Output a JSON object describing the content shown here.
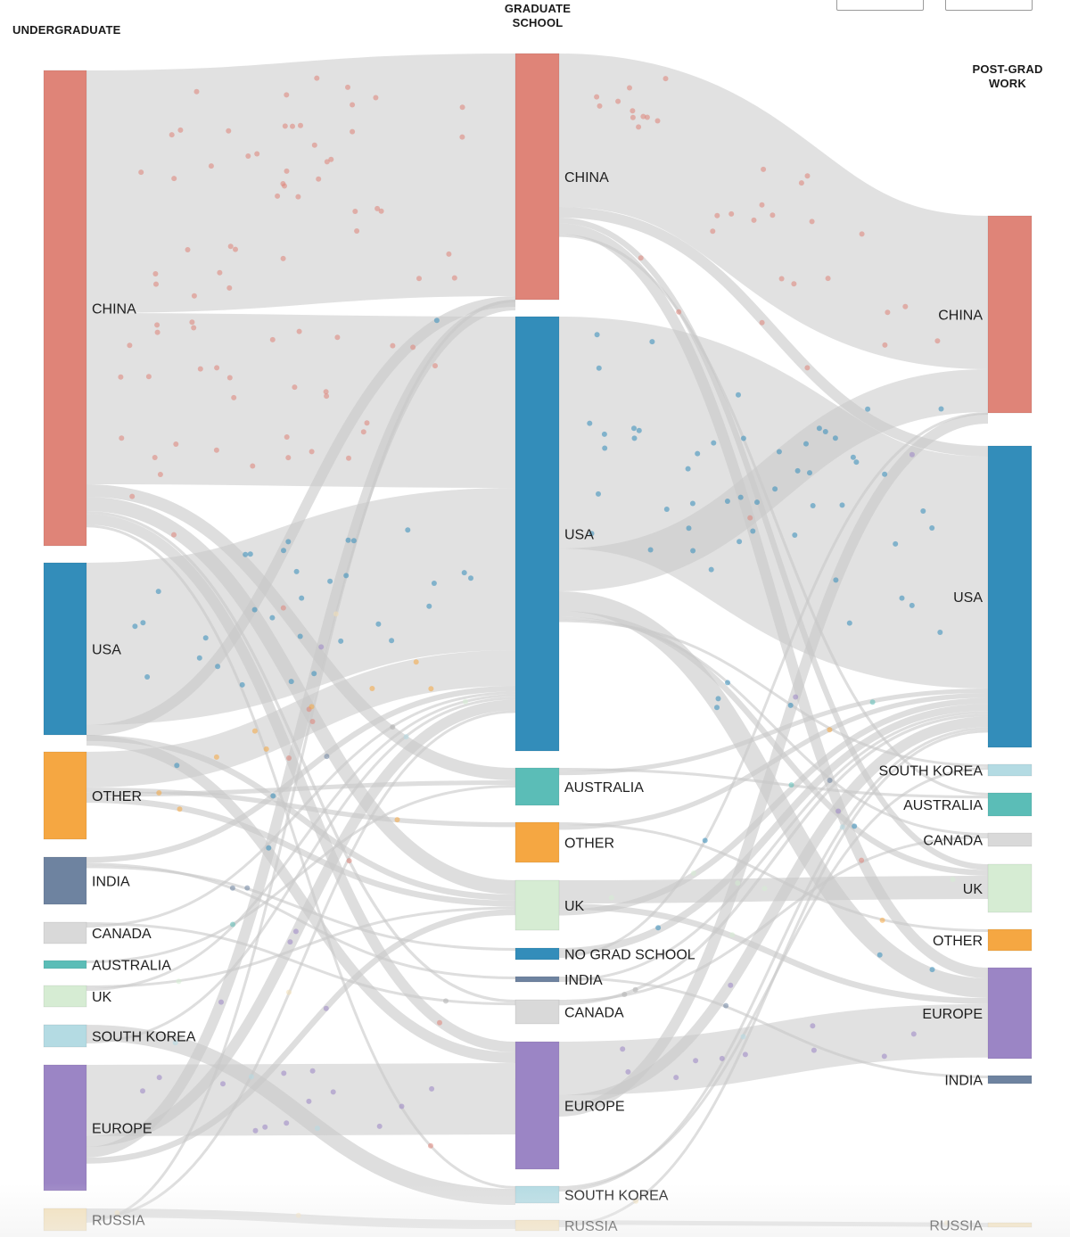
{
  "stages": {
    "undergraduate": "UNDERGRADUATE",
    "graduate_line1": "GRADUATE",
    "graduate_line2": "SCHOOL",
    "postgrad_line1": "POST-GRAD",
    "postgrad_line2": "WORK"
  },
  "colors": {
    "china": "#df8478",
    "usa": "#338dba",
    "other": "#f5a742",
    "india": "#6e83a0",
    "canada": "#d9d9d9",
    "australia": "#5bbdb7",
    "uk": "#d6ecd3",
    "south_korea": "#b4dbe3",
    "europe": "#9b85c5",
    "russia": "#f3dfb5",
    "no_grad_school": "#338dba",
    "link": "#c8c8c8"
  },
  "columns": [
    {
      "id": "undergraduate",
      "nodes": [
        {
          "id": "u_china",
          "label": "CHINA",
          "color": "china"
        },
        {
          "id": "u_usa",
          "label": "USA",
          "color": "usa"
        },
        {
          "id": "u_other",
          "label": "OTHER",
          "color": "other"
        },
        {
          "id": "u_india",
          "label": "INDIA",
          "color": "india"
        },
        {
          "id": "u_canada",
          "label": "CANADA",
          "color": "canada"
        },
        {
          "id": "u_australia",
          "label": "AUSTRALIA",
          "color": "australia"
        },
        {
          "id": "u_uk",
          "label": "UK",
          "color": "uk"
        },
        {
          "id": "u_korea",
          "label": "SOUTH KOREA",
          "color": "south_korea"
        },
        {
          "id": "u_europe",
          "label": "EUROPE",
          "color": "europe"
        },
        {
          "id": "u_russia",
          "label": "RUSSIA",
          "color": "russia"
        }
      ]
    },
    {
      "id": "graduate",
      "nodes": [
        {
          "id": "g_china",
          "label": "CHINA",
          "color": "china"
        },
        {
          "id": "g_usa",
          "label": "USA",
          "color": "usa"
        },
        {
          "id": "g_australia",
          "label": "AUSTRALIA",
          "color": "australia"
        },
        {
          "id": "g_other",
          "label": "OTHER",
          "color": "other"
        },
        {
          "id": "g_uk",
          "label": "UK",
          "color": "uk"
        },
        {
          "id": "g_nograd",
          "label": "NO GRAD SCHOOL",
          "color": "no_grad_school"
        },
        {
          "id": "g_india",
          "label": "INDIA",
          "color": "india"
        },
        {
          "id": "g_canada",
          "label": "CANADA",
          "color": "canada"
        },
        {
          "id": "g_europe",
          "label": "EUROPE",
          "color": "europe"
        },
        {
          "id": "g_korea",
          "label": "SOUTH KOREA",
          "color": "south_korea"
        },
        {
          "id": "g_russia",
          "label": "RUSSIA",
          "color": "russia"
        }
      ]
    },
    {
      "id": "postgrad",
      "nodes": [
        {
          "id": "p_china",
          "label": "CHINA",
          "color": "china"
        },
        {
          "id": "p_usa",
          "label": "USA",
          "color": "usa"
        },
        {
          "id": "p_korea",
          "label": "SOUTH KOREA",
          "color": "south_korea"
        },
        {
          "id": "p_australia",
          "label": "AUSTRALIA",
          "color": "australia"
        },
        {
          "id": "p_canada",
          "label": "CANADA",
          "color": "canada"
        },
        {
          "id": "p_uk",
          "label": "UK",
          "color": "uk"
        },
        {
          "id": "p_other",
          "label": "OTHER",
          "color": "other"
        },
        {
          "id": "p_europe",
          "label": "EUROPE",
          "color": "europe"
        },
        {
          "id": "p_india",
          "label": "INDIA",
          "color": "india"
        },
        {
          "id": "p_russia",
          "label": "RUSSIA",
          "color": "russia"
        }
      ]
    }
  ],
  "links": [
    {
      "source": "u_china",
      "target": "g_china"
    },
    {
      "source": "u_china",
      "target": "g_usa"
    },
    {
      "source": "u_china",
      "target": "g_australia"
    },
    {
      "source": "u_china",
      "target": "g_uk"
    },
    {
      "source": "u_china",
      "target": "g_canada"
    },
    {
      "source": "u_china",
      "target": "g_europe"
    },
    {
      "source": "u_china",
      "target": "g_korea"
    },
    {
      "source": "u_usa",
      "target": "g_usa"
    },
    {
      "source": "u_usa",
      "target": "g_china"
    },
    {
      "source": "u_usa",
      "target": "g_uk"
    },
    {
      "source": "u_usa",
      "target": "g_europe"
    },
    {
      "source": "u_other",
      "target": "g_usa"
    },
    {
      "source": "u_other",
      "target": "g_other"
    },
    {
      "source": "u_other",
      "target": "g_australia"
    },
    {
      "source": "u_other",
      "target": "g_uk"
    },
    {
      "source": "u_india",
      "target": "g_usa"
    },
    {
      "source": "u_india",
      "target": "g_india"
    },
    {
      "source": "u_india",
      "target": "g_nograd"
    },
    {
      "source": "u_canada",
      "target": "g_canada"
    },
    {
      "source": "u_canada",
      "target": "g_usa"
    },
    {
      "source": "u_australia",
      "target": "g_australia"
    },
    {
      "source": "u_uk",
      "target": "g_uk"
    },
    {
      "source": "u_uk",
      "target": "g_usa"
    },
    {
      "source": "u_korea",
      "target": "g_korea"
    },
    {
      "source": "u_korea",
      "target": "g_usa"
    },
    {
      "source": "u_europe",
      "target": "g_europe"
    },
    {
      "source": "u_europe",
      "target": "g_usa"
    },
    {
      "source": "u_europe",
      "target": "g_china"
    },
    {
      "source": "u_europe",
      "target": "g_uk"
    },
    {
      "source": "u_russia",
      "target": "g_russia"
    },
    {
      "source": "u_russia",
      "target": "g_usa"
    },
    {
      "source": "u_russia",
      "target": "g_china"
    },
    {
      "source": "g_china",
      "target": "p_china"
    },
    {
      "source": "g_china",
      "target": "p_usa"
    },
    {
      "source": "g_china",
      "target": "p_uk"
    },
    {
      "source": "g_china",
      "target": "p_europe"
    },
    {
      "source": "g_china",
      "target": "p_australia"
    },
    {
      "source": "g_usa",
      "target": "p_usa"
    },
    {
      "source": "g_usa",
      "target": "p_china"
    },
    {
      "source": "g_usa",
      "target": "p_europe"
    },
    {
      "source": "g_usa",
      "target": "p_uk"
    },
    {
      "source": "g_usa",
      "target": "p_canada"
    },
    {
      "source": "g_usa",
      "target": "p_korea"
    },
    {
      "source": "g_australia",
      "target": "p_australia"
    },
    {
      "source": "g_australia",
      "target": "p_usa"
    },
    {
      "source": "g_other",
      "target": "p_other"
    },
    {
      "source": "g_other",
      "target": "p_usa"
    },
    {
      "source": "g_uk",
      "target": "p_uk"
    },
    {
      "source": "g_uk",
      "target": "p_europe"
    },
    {
      "source": "g_uk",
      "target": "p_usa"
    },
    {
      "source": "g_nograd",
      "target": "p_usa"
    },
    {
      "source": "g_nograd",
      "target": "p_china"
    },
    {
      "source": "g_india",
      "target": "p_india"
    },
    {
      "source": "g_india",
      "target": "p_usa"
    },
    {
      "source": "g_canada",
      "target": "p_canada"
    },
    {
      "source": "g_canada",
      "target": "p_usa"
    },
    {
      "source": "g_europe",
      "target": "p_europe"
    },
    {
      "source": "g_europe",
      "target": "p_usa"
    },
    {
      "source": "g_europe",
      "target": "p_china"
    },
    {
      "source": "g_korea",
      "target": "p_korea"
    },
    {
      "source": "g_korea",
      "target": "p_usa"
    },
    {
      "source": "g_russia",
      "target": "p_russia"
    },
    {
      "source": "g_russia",
      "target": "p_usa"
    }
  ]
}
